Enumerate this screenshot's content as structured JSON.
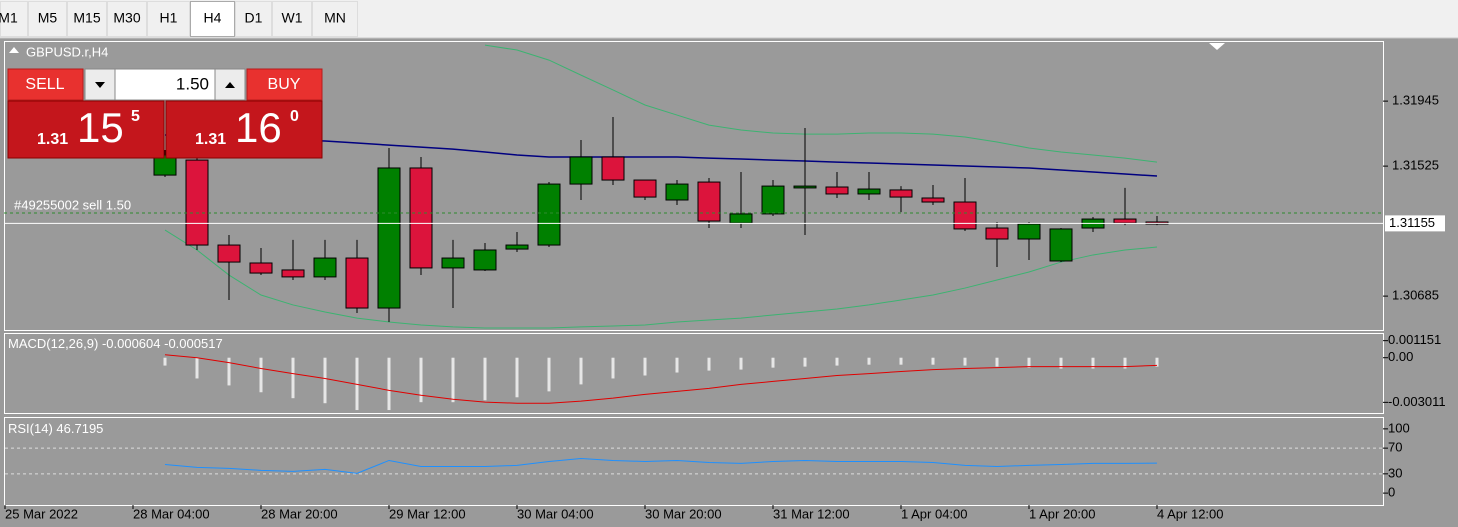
{
  "toolbar": {
    "timeframes": [
      "M1",
      "M5",
      "M15",
      "M30",
      "H1",
      "H4",
      "D1",
      "W1",
      "MN"
    ],
    "active": "H4"
  },
  "chart": {
    "symbol": "GBPUSD.r,H4",
    "ylim": [
      1.30466,
      1.32327
    ],
    "yticks": [
      1.31945,
      1.31525,
      1.30685
    ],
    "current_price": 1.31155,
    "order_label": "#49255002 sell 1.50",
    "time_labels": [
      "25 Mar 2022",
      "28 Mar 04:00",
      "28 Mar 20:00",
      "29 Mar 12:00",
      "30 Mar 04:00",
      "30 Mar 20:00",
      "31 Mar 12:00",
      "1 Apr 04:00",
      "1 Apr 20:00",
      "4 Apr 12:00"
    ],
    "up_color": "#008000",
    "down_color": "#dc143c",
    "candles": {
      "open": [
        1.31467,
        1.31564,
        1.31015,
        1.30899,
        1.30854,
        1.30809,
        1.30931,
        1.30608,
        1.31513,
        1.30867,
        1.30854,
        1.30989,
        1.31015,
        1.31409,
        1.31584,
        1.31435,
        1.31306,
        1.31422,
        1.31157,
        1.31216,
        1.31384,
        1.3139,
        1.31345,
        1.31371,
        1.31319,
        1.31293,
        1.31125,
        1.31054,
        1.30912,
        1.31125,
        1.31183,
        1.31164
      ],
      "high": [
        1.31629,
        1.31597,
        1.3108,
        1.30996,
        1.31048,
        1.31048,
        1.31048,
        1.31642,
        1.31584,
        1.31048,
        1.31028,
        1.31099,
        1.31422,
        1.31694,
        1.31842,
        1.31435,
        1.31435,
        1.31448,
        1.31487,
        1.31435,
        1.31771,
        1.31487,
        1.31487,
        1.31396,
        1.31403,
        1.31448,
        1.31164,
        1.31164,
        1.31125,
        1.31196,
        1.31384,
        1.31203
      ],
      "low": [
        1.31455,
        1.30983,
        1.3066,
        1.30821,
        1.30789,
        1.30789,
        1.30576,
        1.30518,
        1.30821,
        1.30608,
        1.30847,
        1.3097,
        1.31002,
        1.31306,
        1.31403,
        1.31306,
        1.31274,
        1.31125,
        1.31125,
        1.31203,
        1.3108,
        1.31319,
        1.31306,
        1.31228,
        1.31274,
        1.31106,
        1.30873,
        1.30918,
        1.30905,
        1.31099,
        1.31144,
        1.31144
      ],
      "close": [
        1.31597,
        1.31015,
        1.30905,
        1.30834,
        1.30809,
        1.30931,
        1.30608,
        1.31513,
        1.30867,
        1.30931,
        1.30983,
        1.31015,
        1.31409,
        1.31584,
        1.31435,
        1.31325,
        1.31409,
        1.3117,
        1.31216,
        1.31396,
        1.31396,
        1.31345,
        1.31377,
        1.31325,
        1.31293,
        1.31119,
        1.31054,
        1.31151,
        1.31119,
        1.31183,
        1.31157,
        1.31151
      ]
    },
    "lines": [
      {
        "color": "#000080",
        "values": [
          1.31726,
          1.31719,
          1.31713,
          1.31706,
          1.31694,
          1.31687,
          1.31674,
          1.31661,
          1.31648,
          1.31635,
          1.31616,
          1.31597,
          1.31584,
          1.31584,
          1.31584,
          1.31584,
          1.31584,
          1.31577,
          1.31571,
          1.31564,
          1.31558,
          1.31551,
          1.31545,
          1.31539,
          1.31532,
          1.31526,
          1.31519,
          1.31513,
          1.315,
          1.31487,
          1.31474,
          1.31461
        ]
      },
      {
        "color": "#3cb371",
        "values": [
          null,
          null,
          null,
          null,
          null,
          null,
          null,
          null,
          null,
          null,
          1.32307,
          1.32275,
          1.3221,
          1.32113,
          1.32017,
          1.3192,
          1.31855,
          1.3179,
          1.31758,
          1.31739,
          1.31732,
          1.31732,
          1.31739,
          1.31739,
          1.31732,
          1.31713,
          1.31681,
          1.31642,
          1.31616,
          1.31597,
          1.31577,
          1.31551
        ]
      },
      {
        "color": "#3cb371",
        "values": [
          1.31112,
          1.30983,
          1.30821,
          1.30692,
          1.30628,
          1.30582,
          1.30543,
          1.30518,
          1.30498,
          1.30486,
          1.30479,
          1.30479,
          1.30479,
          1.30486,
          1.30492,
          1.30498,
          1.30518,
          1.30531,
          1.30543,
          1.30563,
          1.30582,
          1.30602,
          1.30628,
          1.3066,
          1.30692,
          1.30737,
          1.30789,
          1.30841,
          1.30905,
          1.30951,
          1.30983,
          1.31002
        ]
      }
    ]
  },
  "trade_panel": {
    "sell": "SELL",
    "buy": "BUY",
    "lot": "1.50",
    "bid": {
      "big": "1.31",
      "main": "15",
      "pip": "5"
    },
    "ask": {
      "big": "1.31",
      "main": "16",
      "pip": "0"
    }
  },
  "macd": {
    "title": "MACD(12,26,9)",
    "ylim": [
      -0.00373,
      0.0016
    ],
    "yticks": [
      0.001151,
      {
        "value": 0,
        "label": "0.00"
      },
      -0.003011
    ],
    "histogram_color": "#e6e6e6",
    "signal_color": "#e00000",
    "histogram": [
      -0.00053,
      -0.0014,
      -0.00187,
      -0.00233,
      -0.00273,
      -0.00307,
      -0.00353,
      -0.00353,
      -0.003,
      -0.003,
      -0.00287,
      -0.00267,
      -0.00227,
      -0.0018,
      -0.0014,
      -0.0012,
      -0.001,
      -0.00087,
      -0.0008,
      -0.00067,
      -0.0006,
      -0.00053,
      -0.00047,
      -0.00047,
      -0.00047,
      -0.00053,
      -0.0006,
      -0.00067,
      -0.00073,
      -0.00073,
      -0.00073,
      -0.000604
    ],
    "signal": [
      0.0002,
      0,
      -0.00033,
      -0.00073,
      -0.00107,
      -0.0014,
      -0.0018,
      -0.0022,
      -0.00253,
      -0.0028,
      -0.003,
      -0.00307,
      -0.00307,
      -0.00293,
      -0.00273,
      -0.00247,
      -0.00227,
      -0.00207,
      -0.0018,
      -0.0016,
      -0.0014,
      -0.0012,
      -0.00107,
      -0.00093,
      -0.0008,
      -0.00073,
      -0.00067,
      -0.0006,
      -0.0006,
      -0.0006,
      -0.0006,
      -0.000517
    ]
  },
  "rsi": {
    "title": "RSI(14)",
    "ylim": [
      -18.5,
      116.9
    ],
    "yticks": [
      100,
      70,
      30,
      0
    ],
    "levels": [
      70,
      30
    ],
    "color": "#1e90ff",
    "values": [
      44.6,
      40.0,
      38.5,
      35.4,
      33.8,
      36.9,
      30.8,
      50.8,
      41.5,
      41.5,
      41.5,
      43.1,
      49.2,
      53.8,
      50.8,
      49.2,
      50.8,
      47.7,
      46.2,
      49.2,
      50.8,
      49.2,
      49.2,
      49.2,
      47.7,
      43.1,
      41.5,
      43.1,
      44.6,
      46.2,
      46.2,
      46.7195
    ]
  }
}
